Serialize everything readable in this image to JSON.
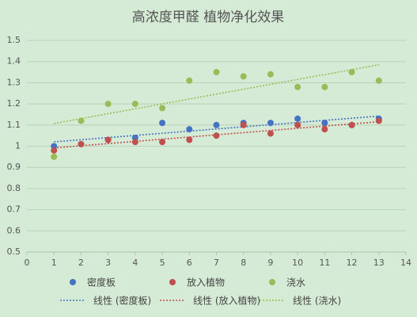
{
  "chart_data": {
    "type": "scatter",
    "title": "高浓度甲醛 植物净化效果",
    "x": [
      1,
      2,
      3,
      4,
      5,
      6,
      7,
      8,
      9,
      10,
      11,
      12,
      13
    ],
    "series": [
      {
        "name": "密度板",
        "color": "#4472c4",
        "trendline_name": "线性 (密度板)",
        "values": [
          1.0,
          1.01,
          1.03,
          1.04,
          1.11,
          1.08,
          1.1,
          1.11,
          1.11,
          1.13,
          1.11,
          1.1,
          1.13
        ]
      },
      {
        "name": "放入植物",
        "color": "#c0504d",
        "trendline_name": "线性 (放入植物)",
        "values": [
          0.98,
          1.01,
          1.03,
          1.02,
          1.02,
          1.03,
          1.05,
          1.1,
          1.06,
          1.1,
          1.08,
          1.1,
          1.12
        ]
      },
      {
        "name": "浇水",
        "color": "#9bbb59",
        "trendline_name": "线性 (浇水)",
        "values": [
          0.95,
          1.12,
          1.2,
          1.2,
          1.18,
          1.31,
          1.35,
          1.33,
          1.34,
          1.28,
          1.28,
          1.35,
          1.31
        ]
      }
    ],
    "xlim": [
      0,
      14
    ],
    "xticks": [
      0,
      1,
      2,
      3,
      4,
      5,
      6,
      7,
      8,
      9,
      10,
      11,
      12,
      13,
      14
    ],
    "ylim": [
      0.5,
      1.5
    ],
    "yticks": [
      0.5,
      0.6,
      0.7,
      0.8,
      0.9,
      1,
      1.1,
      1.2,
      1.3,
      1.4,
      1.5
    ],
    "grid": true
  }
}
